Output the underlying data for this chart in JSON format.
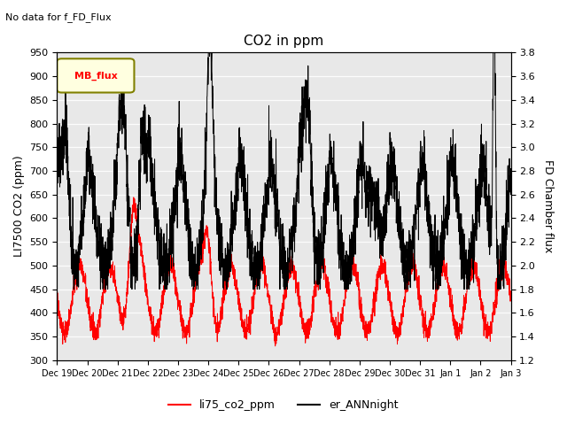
{
  "title": "CO2 in ppm",
  "ylabel_left": "LI7500 CO2 (ppm)",
  "ylabel_right": "FD Chamber flux",
  "ylim_left": [
    300,
    950
  ],
  "ylim_right": [
    1.2,
    3.8
  ],
  "yticks_left": [
    300,
    350,
    400,
    450,
    500,
    550,
    600,
    650,
    700,
    750,
    800,
    850,
    900,
    950
  ],
  "yticks_right": [
    1.2,
    1.4,
    1.6,
    1.8,
    2.0,
    2.2,
    2.4,
    2.6,
    2.8,
    3.0,
    3.2,
    3.4,
    3.6,
    3.8
  ],
  "no_data_text": "No data for f_FD_Flux",
  "mb_flux_label": "MB_flux",
  "legend_labels": [
    "li75_co2_ppm",
    "er_ANNnight"
  ],
  "line_colors": [
    "red",
    "black"
  ],
  "xtick_labels": [
    "Dec 19",
    "Dec 20",
    "Dec 21",
    "Dec 22",
    "Dec 23",
    "Dec 24",
    "Dec 25",
    "Dec 26",
    "Dec 27",
    "Dec 28",
    "Dec 29",
    "Dec 30",
    "Dec 31",
    "Jan 1",
    "Jan 2",
    "Jan 3"
  ]
}
